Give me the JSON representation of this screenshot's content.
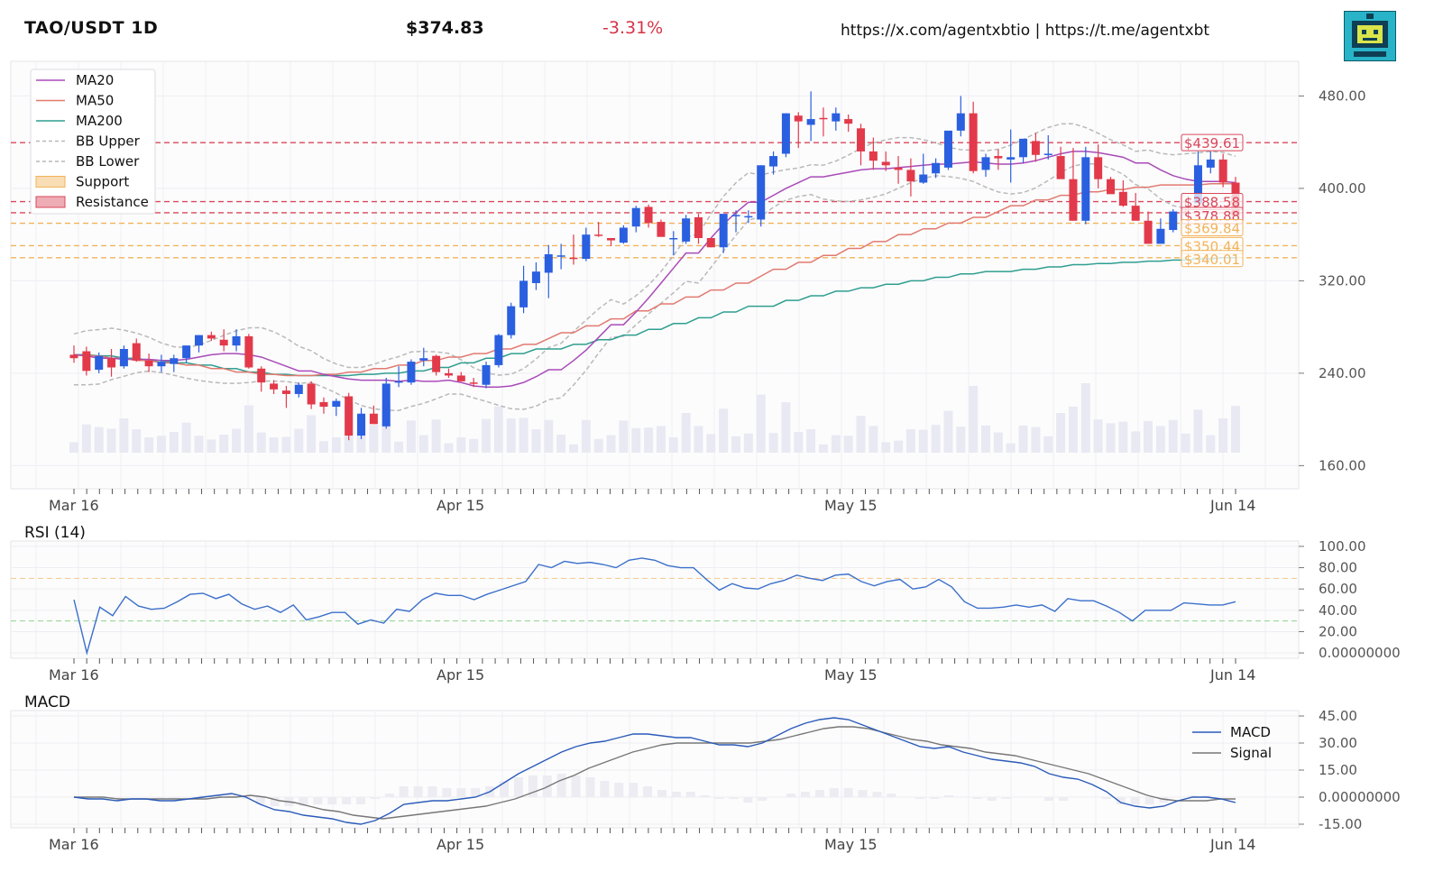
{
  "header": {
    "symbol": "TAO/USDT 1D",
    "price": "$374.83",
    "change": "-3.31%",
    "links": "https://x.com/agentxbtio | https://t.me/agentxbt",
    "logo_icon": "robot-logo-icon"
  },
  "colors": {
    "up": "#2a5fe0",
    "down": "#e23a4a",
    "ma20": "#a94bb8",
    "ma50": "#e17a6f",
    "ma200": "#2f9e8f",
    "bb": "#b9b9b9",
    "support": "#f2b35a",
    "resistance": "#d9475a",
    "rsi": "#3b6fc9",
    "macd": "#2b5bb8",
    "signal": "#777777"
  },
  "panels": {
    "rsi_title": "RSI (14)",
    "macd_title": "MACD"
  },
  "chart_data": [
    {
      "type": "candlestick",
      "title": "",
      "x_ticks": [
        "Mar 16",
        "Apr 15",
        "May 15",
        "Jun 14"
      ],
      "y_ticks": [
        "160.00",
        "240.00",
        "320.00",
        "400.00",
        "480.00"
      ],
      "ylim": [
        140,
        510
      ],
      "legend": [
        "MA20",
        "MA50",
        "MA200",
        "BB Upper",
        "BB Lower",
        "Support",
        "Resistance"
      ],
      "legend_position": "top-left",
      "support_levels": [
        "$369.84",
        "$350.44",
        "$340.01"
      ],
      "resistance_levels": [
        "$439.61",
        "$388.58",
        "$378.88"
      ],
      "candles_ohlc": [
        [
          256,
          264,
          249,
          253
        ],
        [
          259,
          263,
          238,
          242
        ],
        [
          243,
          258,
          240,
          255
        ],
        [
          253,
          261,
          237,
          245
        ],
        [
          246,
          264,
          244,
          261
        ],
        [
          266,
          270,
          250,
          251
        ],
        [
          251,
          257,
          241,
          246
        ],
        [
          246,
          256,
          241,
          250
        ],
        [
          248,
          256,
          241,
          253
        ],
        [
          253,
          264,
          249,
          264
        ],
        [
          264,
          273,
          258,
          273
        ],
        [
          273,
          276,
          268,
          270
        ],
        [
          269,
          278,
          259,
          264
        ],
        [
          264,
          278,
          259,
          272
        ],
        [
          272,
          274,
          244,
          245
        ],
        [
          244,
          246,
          224,
          232
        ],
        [
          231,
          234,
          222,
          226
        ],
        [
          225,
          229,
          210,
          222
        ],
        [
          222,
          232,
          219,
          230
        ],
        [
          231,
          233,
          209,
          213
        ],
        [
          215,
          219,
          205,
          211
        ],
        [
          211,
          218,
          203,
          216
        ],
        [
          220,
          223,
          182,
          186
        ],
        [
          186,
          210,
          183,
          205
        ],
        [
          205,
          212,
          196,
          196
        ],
        [
          194,
          236,
          192,
          231
        ],
        [
          232,
          246,
          228,
          233
        ],
        [
          232,
          252,
          230,
          250
        ],
        [
          251,
          262,
          246,
          253
        ],
        [
          255,
          256,
          238,
          241
        ],
        [
          240,
          244,
          236,
          238
        ],
        [
          238,
          241,
          234,
          233
        ],
        [
          232,
          236,
          228,
          231
        ],
        [
          230,
          250,
          227,
          247
        ],
        [
          247,
          274,
          245,
          273
        ],
        [
          273,
          301,
          270,
          298
        ],
        [
          297,
          333,
          292,
          320
        ],
        [
          318,
          336,
          312,
          328
        ],
        [
          327,
          351,
          305,
          343
        ],
        [
          342,
          352,
          330,
          342
        ],
        [
          340,
          360,
          334,
          339
        ],
        [
          339,
          366,
          337,
          360
        ],
        [
          360,
          371,
          358,
          359
        ],
        [
          357,
          355,
          350,
          355
        ],
        [
          353,
          368,
          352,
          366
        ],
        [
          367,
          385,
          362,
          383
        ],
        [
          384,
          386,
          366,
          370
        ],
        [
          371,
          373,
          361,
          358
        ],
        [
          357,
          363,
          342,
          357
        ],
        [
          354,
          377,
          352,
          374
        ],
        [
          375,
          378,
          352,
          357
        ],
        [
          357,
          354,
          349,
          349
        ],
        [
          349,
          376,
          344,
          378
        ],
        [
          376,
          381,
          362,
          377
        ],
        [
          375,
          381,
          370,
          376
        ],
        [
          373,
          420,
          367,
          420
        ],
        [
          419,
          432,
          412,
          428
        ],
        [
          430,
          465,
          427,
          465
        ],
        [
          463,
          466,
          435,
          458
        ],
        [
          455,
          484,
          441,
          460
        ],
        [
          461,
          470,
          445,
          460
        ],
        [
          458,
          470,
          450,
          465
        ],
        [
          460,
          464,
          449,
          456
        ],
        [
          452,
          456,
          420,
          432
        ],
        [
          432,
          444,
          416,
          424
        ],
        [
          423,
          432,
          415,
          420
        ],
        [
          418,
          428,
          404,
          416
        ],
        [
          416,
          426,
          393,
          406
        ],
        [
          405,
          430,
          404,
          412
        ],
        [
          413,
          426,
          409,
          422
        ],
        [
          418,
          440,
          416,
          450
        ],
        [
          450,
          480,
          445,
          465
        ],
        [
          465,
          475,
          413,
          415
        ],
        [
          416,
          430,
          410,
          427
        ],
        [
          428,
          434,
          416,
          426
        ],
        [
          425,
          451,
          405,
          427
        ],
        [
          427,
          441,
          422,
          443
        ],
        [
          441,
          448,
          423,
          429
        ],
        [
          429,
          446,
          425,
          430
        ],
        [
          428,
          436,
          412,
          408
        ],
        [
          408,
          435,
          375,
          372
        ],
        [
          372,
          436,
          369,
          427
        ],
        [
          427,
          438,
          400,
          408
        ],
        [
          408,
          410,
          396,
          395
        ],
        [
          397,
          407,
          384,
          385
        ],
        [
          385,
          396,
          375,
          372
        ],
        [
          372,
          380,
          354,
          352
        ],
        [
          352,
          374,
          353,
          365
        ],
        [
          364,
          382,
          362,
          380
        ],
        [
          380,
          390,
          377,
          379
        ],
        [
          387,
          432,
          388,
          420
        ],
        [
          418,
          432,
          413,
          425
        ],
        [
          425,
          430,
          401,
          405
        ],
        [
          405,
          410,
          390,
          376
        ]
      ],
      "ma20": [
        256,
        255,
        253,
        252,
        252,
        252,
        251,
        252,
        254,
        256,
        257,
        256,
        254,
        250,
        246,
        242,
        239,
        237,
        235,
        234,
        234,
        233,
        234,
        233,
        234,
        232,
        229,
        228,
        229,
        232,
        237,
        243,
        251,
        260,
        271,
        282,
        293,
        305,
        318,
        331,
        344,
        357,
        369,
        379,
        388,
        394,
        400,
        405,
        410,
        412,
        414,
        416,
        417,
        418,
        419,
        420,
        421,
        422,
        423,
        422,
        421,
        422,
        424,
        427,
        430,
        432,
        431,
        429,
        427,
        422,
        416,
        411,
        408,
        406,
        406,
        405
      ],
      "ma50": [
        256,
        255,
        253,
        251,
        249,
        247,
        244,
        241,
        239,
        238,
        238,
        239,
        241,
        244,
        247,
        251,
        254,
        257,
        261,
        265,
        270,
        275,
        281,
        287,
        294,
        300,
        306,
        312,
        318,
        324,
        330,
        336,
        342,
        348,
        354,
        360,
        365,
        370,
        375,
        380,
        385,
        390,
        394,
        397,
        399,
        401,
        403,
        403,
        404,
        404
      ],
      "ma200": [
        256,
        255,
        253,
        251,
        249,
        247,
        244,
        241,
        239,
        238,
        238,
        239,
        240,
        242,
        245,
        249,
        253,
        257,
        261,
        265,
        269,
        273,
        278,
        283,
        288,
        293,
        298,
        303,
        307,
        311,
        314,
        317,
        320,
        323,
        326,
        328,
        330,
        332,
        334,
        335,
        336,
        337,
        338,
        339,
        340
      ]
    },
    {
      "type": "line",
      "title": "RSI (14)",
      "x_ticks": [
        "Mar 16",
        "Apr 15",
        "May 15",
        "Jun 14"
      ],
      "y_ticks": [
        "100.00",
        "80.00",
        "60.00",
        "40.00",
        "20.00",
        "0.00000000"
      ],
      "ylim": [
        -5,
        105
      ],
      "overbought": 70,
      "oversold": 30,
      "values": [
        50,
        0,
        43,
        35,
        53,
        44,
        41,
        42,
        48,
        55,
        56,
        51,
        55,
        46,
        41,
        44,
        38,
        45,
        31,
        34,
        38,
        38,
        27,
        31,
        28,
        41,
        39,
        50,
        56,
        54,
        54,
        50,
        55,
        59,
        63,
        67,
        83,
        80,
        86,
        84,
        85,
        83,
        80,
        87,
        89,
        87,
        82,
        80,
        80,
        69,
        59,
        65,
        61,
        60,
        65,
        68,
        73,
        70,
        68,
        73,
        74,
        67,
        63,
        67,
        69,
        60,
        62,
        69,
        62,
        48,
        42,
        42,
        43,
        45,
        43,
        45,
        39,
        51,
        49,
        49,
        44,
        38,
        30,
        40,
        40,
        40,
        47,
        46,
        45,
        45,
        48
      ]
    },
    {
      "type": "line",
      "title": "MACD",
      "x_ticks": [
        "Mar 16",
        "Apr 15",
        "May 15",
        "Jun 14"
      ],
      "y_ticks": [
        "45.00",
        "30.00",
        "15.00",
        "0.00000000",
        "-15.00"
      ],
      "ylim": [
        -17,
        48
      ],
      "legend": [
        "MACD",
        "Signal"
      ],
      "legend_position": "top-right",
      "series": [
        {
          "name": "MACD",
          "values": [
            0,
            -1,
            -1,
            -2,
            -1,
            -1,
            -2,
            -2,
            -1,
            0,
            1,
            2,
            0,
            -4,
            -7,
            -8,
            -10,
            -11,
            -12,
            -14,
            -15,
            -13,
            -9,
            -4,
            -3,
            -2,
            -2,
            -1,
            0,
            3,
            8,
            13,
            17,
            21,
            25,
            28,
            30,
            31,
            33,
            35,
            35,
            34,
            33,
            33,
            31,
            29,
            29,
            28,
            30,
            34,
            38,
            41,
            43,
            44,
            43,
            40,
            37,
            34,
            31,
            28,
            27,
            28,
            25,
            23,
            21,
            20,
            19,
            17,
            13,
            11,
            10,
            7,
            3,
            -3,
            -5,
            -6,
            -5,
            -2,
            0,
            0,
            -1,
            -3
          ]
        },
        {
          "name": "Signal",
          "values": [
            0,
            0,
            0,
            -1,
            -1,
            -1,
            -1,
            -1,
            -1,
            -1,
            0,
            0,
            1,
            0,
            -2,
            -3,
            -5,
            -7,
            -8,
            -10,
            -11,
            -12,
            -11,
            -10,
            -9,
            -8,
            -7,
            -6,
            -5,
            -3,
            -1,
            2,
            5,
            9,
            12,
            16,
            19,
            22,
            25,
            27,
            29,
            30,
            30,
            30,
            30,
            30,
            30,
            31,
            32,
            34,
            36,
            38,
            39,
            39,
            38,
            36,
            34,
            32,
            31,
            29,
            28,
            27,
            25,
            24,
            23,
            21,
            19,
            17,
            15,
            13,
            10,
            7,
            4,
            1,
            -1,
            -2,
            -2,
            -2,
            -1,
            -1
          ]
        }
      ]
    }
  ]
}
